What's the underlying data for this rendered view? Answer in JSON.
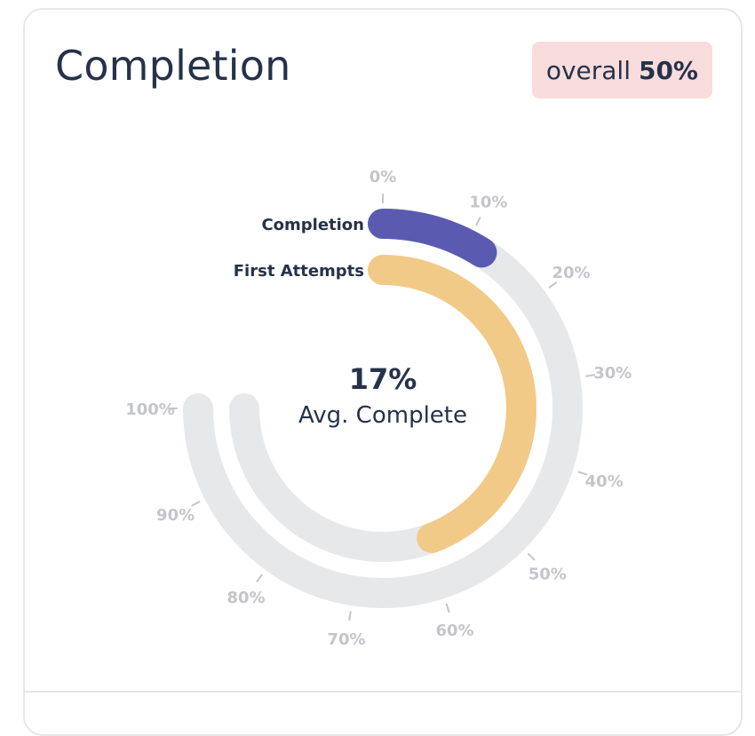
{
  "card": {
    "title": "Completion",
    "badge_prefix": "overall",
    "badge_value": "50%",
    "badge_color": "#f9dcdc"
  },
  "chart_data": {
    "type": "radial-bar",
    "scale_min": 0,
    "scale_max": 100,
    "unit": "%",
    "tick_labels": [
      "0%",
      "10%",
      "20%",
      "30%",
      "40%",
      "50%",
      "60%",
      "70%",
      "80%",
      "90%",
      "100%"
    ],
    "series": [
      {
        "name": "Completion",
        "value": 12,
        "color": "#5a5bb0"
      },
      {
        "name": "First Attempts",
        "value": 59,
        "color": "#f2ca87"
      }
    ],
    "track_color": "#e7e8ea",
    "center_value": "17%",
    "center_caption": "Avg. Complete"
  }
}
